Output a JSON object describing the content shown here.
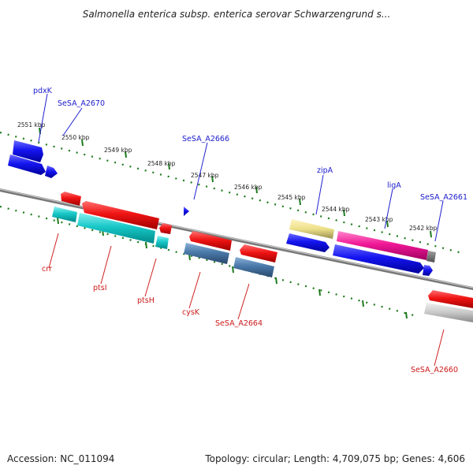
{
  "title": "Salmonella enterica subsp. enterica serovar Schwarzengrund s...",
  "footer": {
    "accession": "Accession: NC_011094",
    "stats": "Topology: circular; Length: 4,709,075 bp; Genes: 4,606"
  },
  "scale_labels": [
    "2551 kbp",
    "2550 kbp",
    "2549 kbp",
    "2548 kbp",
    "2547 kbp",
    "2546 kbp",
    "2545 kbp",
    "2544 kbp",
    "2543 kbp",
    "2542 kbp"
  ],
  "gene_labels_plus": [
    "pdxK",
    "SeSA_A2670",
    "SeSA_A2666",
    "zipA",
    "ligA",
    "SeSA_A2661"
  ],
  "gene_labels_minus": [
    "crr",
    "ptsI",
    "ptsH",
    "cysK",
    "SeSA_A2664",
    "SeSA_A2660"
  ],
  "colors": {
    "strand_plus": "#1010e8",
    "strand_minus": "#e81010",
    "backbone": "#888888",
    "tick": "#1c7a1c"
  }
}
